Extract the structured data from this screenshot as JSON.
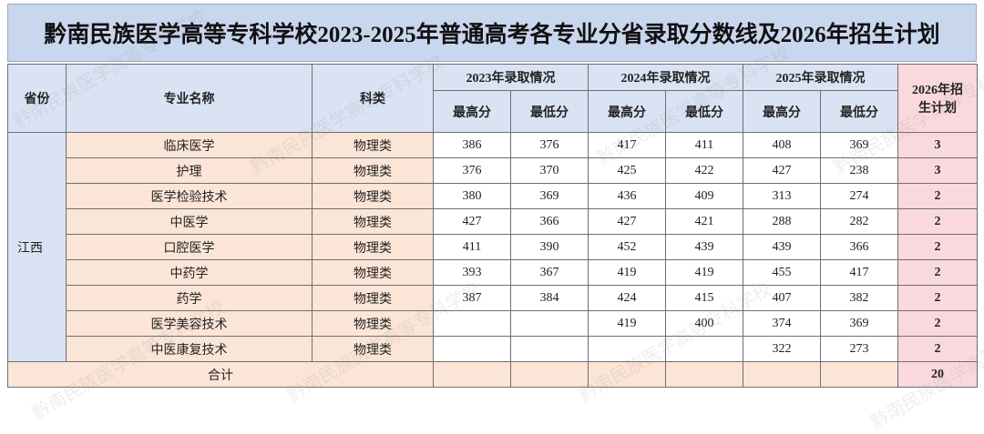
{
  "title": "黔南民族医学高等专科学校2023-2025年普通高考各专业分省录取分数线及2026年招生计划",
  "watermark": "黔南民族医学高等专科学校",
  "table": {
    "headers": {
      "province": "省份",
      "major": "专业名称",
      "category": "科类",
      "years": [
        "2023年录取情况",
        "2024年录取情况",
        "2025年录取情况"
      ],
      "max": "最高分",
      "min": "最低分",
      "plan": "2026年招生计划"
    },
    "province": "江西",
    "rows": [
      {
        "major": "临床医学",
        "category": "物理类",
        "scores": [
          386,
          376,
          417,
          411,
          408,
          369
        ],
        "plan": 3
      },
      {
        "major": "护理",
        "category": "物理类",
        "scores": [
          376,
          370,
          425,
          422,
          427,
          238
        ],
        "plan": 3
      },
      {
        "major": "医学检验技术",
        "category": "物理类",
        "scores": [
          380,
          369,
          436,
          409,
          313,
          274
        ],
        "plan": 2
      },
      {
        "major": "中医学",
        "category": "物理类",
        "scores": [
          427,
          366,
          427,
          421,
          288,
          282
        ],
        "plan": 2
      },
      {
        "major": "口腔医学",
        "category": "物理类",
        "scores": [
          411,
          390,
          452,
          439,
          439,
          366
        ],
        "plan": 2
      },
      {
        "major": "中药学",
        "category": "物理类",
        "scores": [
          393,
          367,
          419,
          419,
          455,
          417
        ],
        "plan": 2
      },
      {
        "major": "药学",
        "category": "物理类",
        "scores": [
          387,
          384,
          424,
          415,
          407,
          382
        ],
        "plan": 2
      },
      {
        "major": "医学美容技术",
        "category": "物理类",
        "scores": [
          null,
          null,
          419,
          400,
          374,
          369
        ],
        "plan": 2
      },
      {
        "major": "中医康复技术",
        "category": "物理类",
        "scores": [
          null,
          null,
          null,
          null,
          322,
          273
        ],
        "plan": 2
      }
    ],
    "total": {
      "label": "合计",
      "plan": 20
    }
  }
}
